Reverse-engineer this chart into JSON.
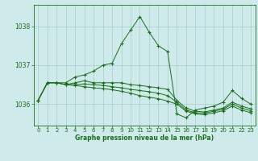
{
  "background_color": "#ceeaea",
  "grid_color": "#aacccc",
  "line_color": "#1a6e1a",
  "title": "Graphe pression niveau de la mer (hPa)",
  "ylim": [
    1035.45,
    1038.55
  ],
  "xlim": [
    -0.5,
    23.5
  ],
  "yticks": [
    1036,
    1037,
    1038
  ],
  "xticks": [
    0,
    1,
    2,
    3,
    4,
    5,
    6,
    7,
    8,
    9,
    10,
    11,
    12,
    13,
    14,
    15,
    16,
    17,
    18,
    19,
    20,
    21,
    22,
    23
  ],
  "series": [
    {
      "x": [
        0,
        1,
        2,
        3,
        4,
        5,
        6,
        7,
        8,
        9,
        10,
        11,
        12,
        13,
        14,
        15,
        16,
        17,
        18,
        19,
        20,
        21,
        22,
        23
      ],
      "y": [
        1036.1,
        1036.55,
        1036.55,
        1036.55,
        1036.7,
        1036.75,
        1036.85,
        1037.0,
        1037.05,
        1037.55,
        1037.9,
        1038.25,
        1037.85,
        1037.5,
        1037.35,
        1035.75,
        1035.65,
        1035.85,
        1035.9,
        1035.95,
        1036.05,
        1036.35,
        1036.15,
        1036.0
      ]
    },
    {
      "x": [
        0,
        1,
        2,
        3,
        4,
        5,
        6,
        7,
        8,
        9,
        10,
        11,
        12,
        13,
        14,
        15,
        16,
        17,
        18,
        19,
        20,
        21,
        22,
        23
      ],
      "y": [
        1036.1,
        1036.55,
        1036.55,
        1036.5,
        1036.55,
        1036.6,
        1036.55,
        1036.55,
        1036.55,
        1036.55,
        1036.5,
        1036.48,
        1036.45,
        1036.42,
        1036.38,
        1036.1,
        1035.9,
        1035.82,
        1035.8,
        1035.85,
        1035.9,
        1036.05,
        1035.95,
        1035.88
      ]
    },
    {
      "x": [
        0,
        1,
        2,
        3,
        4,
        5,
        6,
        7,
        8,
        9,
        10,
        11,
        12,
        13,
        14,
        15,
        16,
        17,
        18,
        19,
        20,
        21,
        22,
        23
      ],
      "y": [
        1036.1,
        1036.55,
        1036.55,
        1036.5,
        1036.5,
        1036.52,
        1036.5,
        1036.48,
        1036.45,
        1036.42,
        1036.38,
        1036.35,
        1036.32,
        1036.28,
        1036.22,
        1036.05,
        1035.85,
        1035.78,
        1035.77,
        1035.82,
        1035.87,
        1036.0,
        1035.9,
        1035.83
      ]
    },
    {
      "x": [
        0,
        1,
        2,
        3,
        4,
        5,
        6,
        7,
        8,
        9,
        10,
        11,
        12,
        13,
        14,
        15,
        16,
        17,
        18,
        19,
        20,
        21,
        22,
        23
      ],
      "y": [
        1036.1,
        1036.55,
        1036.55,
        1036.5,
        1036.48,
        1036.45,
        1036.42,
        1036.4,
        1036.37,
        1036.33,
        1036.28,
        1036.22,
        1036.18,
        1036.14,
        1036.08,
        1036.0,
        1035.82,
        1035.75,
        1035.73,
        1035.78,
        1035.83,
        1035.95,
        1035.85,
        1035.78
      ]
    }
  ]
}
